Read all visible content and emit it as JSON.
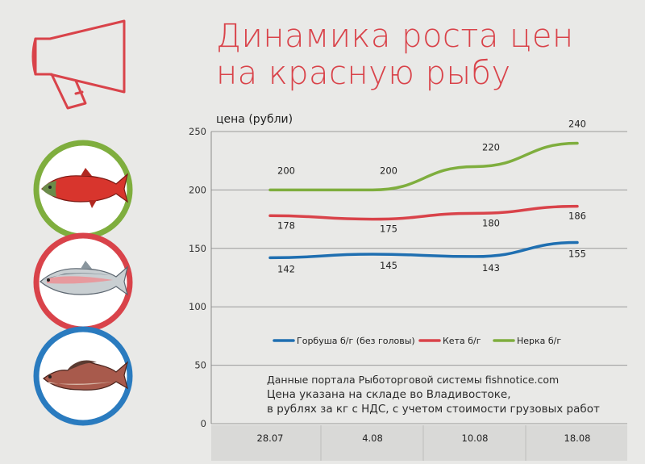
{
  "header": {
    "title_line1": "Динамика роста цен",
    "title_line2": "на красную рыбу",
    "icon": "megaphone-icon"
  },
  "colors": {
    "title": "#d9434a",
    "gorbusha": "#1f6fb1",
    "keta": "#d9434a",
    "nerka": "#7fae3e",
    "ring_green": "#7fae3e",
    "ring_red": "#d9434a",
    "ring_blue": "#2a7bbf"
  },
  "fish_icons": [
    "sockeye-fish-icon",
    "chum-fish-icon",
    "pink-salmon-fish-icon"
  ],
  "note": {
    "source": "Данные портала Рыботорговой системы fishnotice.com",
    "line1": "Цена указана на складе во Владивостоке,",
    "line2": "в рублях за кг с НДС, с учетом стоимости грузовых работ"
  },
  "chart_data": {
    "type": "line",
    "ylabel": "цена (рубли)",
    "xlabel": "",
    "ylim": [
      0,
      250
    ],
    "yticks": [
      0,
      50,
      100,
      150,
      200,
      250
    ],
    "grid": true,
    "legend_position": "bottom-center",
    "categories": [
      "28.07",
      "4.08",
      "10.08",
      "18.08"
    ],
    "series": [
      {
        "name": "Горбуша б/г (без головы)",
        "color": "#1f6fb1",
        "values": [
          142,
          145,
          143,
          155
        ]
      },
      {
        "name": "Кета б/г",
        "color": "#d9434a",
        "values": [
          178,
          175,
          180,
          186
        ]
      },
      {
        "name": "Нерка б/г",
        "color": "#7fae3e",
        "values": [
          200,
          200,
          220,
          240
        ]
      }
    ]
  }
}
